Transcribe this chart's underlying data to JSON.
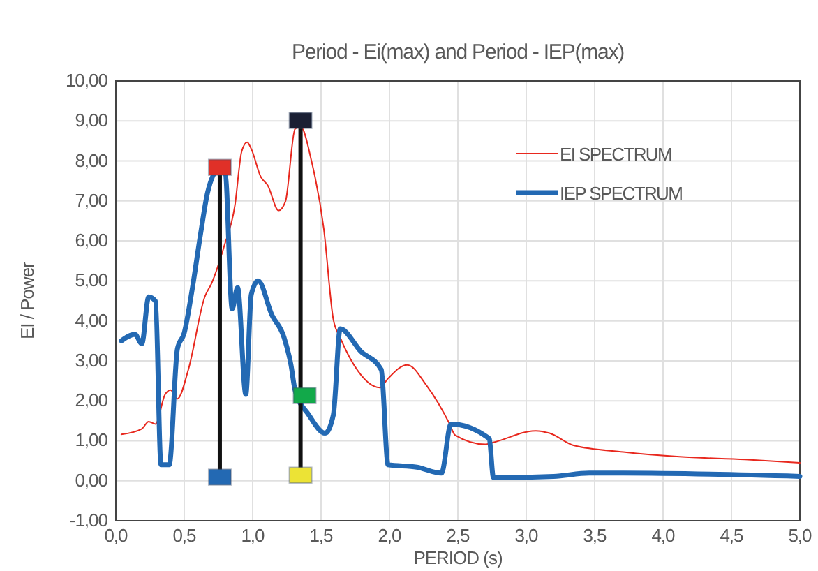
{
  "chart_data": {
    "type": "line",
    "title": "Period - Ei(max)  and Period - IEP(max)",
    "xlabel": "PERIOD (s)",
    "ylabel": "EI / Power",
    "xlim": [
      0,
      5
    ],
    "ylim": [
      -1,
      10
    ],
    "xticks": [
      {
        "value": 0,
        "label": "0,0"
      },
      {
        "value": 0.5,
        "label": "0,5"
      },
      {
        "value": 1,
        "label": "1,0"
      },
      {
        "value": 1.5,
        "label": "1,5"
      },
      {
        "value": 2,
        "label": "2,0"
      },
      {
        "value": 2.5,
        "label": "2,5"
      },
      {
        "value": 3,
        "label": "3,0"
      },
      {
        "value": 3.5,
        "label": "3,5"
      },
      {
        "value": 4,
        "label": "4,0"
      },
      {
        "value": 4.5,
        "label": "4,5"
      },
      {
        "value": 5,
        "label": "5,0"
      }
    ],
    "yticks": [
      {
        "value": -1,
        "label": "-1,00"
      },
      {
        "value": 0,
        "label": "0,00"
      },
      {
        "value": 1,
        "label": "1,00"
      },
      {
        "value": 2,
        "label": "2,00"
      },
      {
        "value": 3,
        "label": "3,00"
      },
      {
        "value": 4,
        "label": "4,00"
      },
      {
        "value": 5,
        "label": "5,00"
      },
      {
        "value": 6,
        "label": "6,00"
      },
      {
        "value": 7,
        "label": "7,00"
      },
      {
        "value": 8,
        "label": "8,00"
      },
      {
        "value": 9,
        "label": "9,00"
      },
      {
        "value": 10,
        "label": "10,00"
      }
    ],
    "grid": true,
    "legend": "top right",
    "line_style": "solid",
    "marker": "none",
    "series": [
      {
        "name": "EI SPECTRUM",
        "color": "#e8281e",
        "x": [
          0.04,
          0.19,
          0.24,
          0.29,
          0.36,
          0.4,
          0.45,
          0.53,
          0.65,
          0.7,
          0.79,
          0.87,
          0.92,
          0.96,
          0.99,
          1.06,
          1.11,
          1.19,
          1.24,
          1.31,
          1.35,
          1.43,
          1.52,
          1.59,
          1.64,
          1.74,
          1.93,
          1.99,
          2.13,
          2.27,
          2.44,
          2.48,
          2.7,
          2.77,
          3.07,
          3.17,
          3.35,
          3.71,
          4.12,
          4.6,
          5.0
        ],
        "values": [
          1.16,
          1.3,
          1.48,
          1.42,
          2.16,
          2.27,
          2.05,
          2.78,
          4.6,
          4.94,
          5.85,
          6.88,
          8.24,
          8.47,
          8.3,
          7.6,
          7.39,
          6.76,
          6.99,
          8.8,
          8.86,
          8.0,
          6.3,
          4.03,
          3.58,
          2.9,
          2.33,
          2.56,
          2.9,
          2.39,
          1.42,
          1.14,
          0.91,
          0.97,
          1.25,
          1.19,
          0.88,
          0.72,
          0.6,
          0.53,
          0.45
        ]
      },
      {
        "name": "IEP SPECTRUM",
        "color": "#2369b3",
        "x": [
          0.04,
          0.14,
          0.19,
          0.24,
          0.29,
          0.33,
          0.39,
          0.45,
          0.5,
          0.56,
          0.62,
          0.67,
          0.75,
          0.8,
          0.85,
          0.89,
          0.95,
          0.99,
          1.04,
          1.14,
          1.23,
          1.28,
          1.31,
          1.41,
          1.53,
          1.59,
          1.64,
          1.79,
          1.94,
          1.99,
          2.2,
          2.38,
          2.45,
          2.72,
          2.73,
          2.76,
          3.2,
          3.46,
          3.71,
          5.0
        ],
        "values": [
          3.5,
          3.66,
          3.43,
          4.6,
          4.49,
          0.4,
          0.4,
          3.3,
          3.7,
          4.83,
          6.19,
          7.2,
          7.78,
          7.67,
          4.3,
          4.83,
          2.16,
          4.66,
          5.0,
          4.15,
          3.58,
          2.9,
          2.27,
          1.65,
          1.19,
          1.65,
          3.8,
          3.24,
          2.78,
          0.4,
          0.34,
          0.19,
          1.42,
          1.08,
          1.05,
          0.08,
          0.11,
          0.19,
          0.19,
          0.11
        ]
      },
      {
        "type": "line",
        "color": "#111111",
        "x": [
          0.76,
          0.76
        ],
        "values": [
          0.09,
          7.84
        ]
      },
      {
        "type": "line",
        "color": "#111111",
        "x": [
          1.35,
          1.35
        ],
        "values": [
          0.14,
          9.01
        ]
      },
      {
        "type": "scatter",
        "marker": "square",
        "color": "#e03028",
        "x": [
          0.76
        ],
        "values": [
          7.84
        ]
      },
      {
        "type": "scatter",
        "marker": "square",
        "color": "#2369b3",
        "x": [
          0.76
        ],
        "values": [
          0.09
        ]
      },
      {
        "type": "scatter",
        "marker": "square",
        "color": "#1a1f33",
        "x": [
          1.35
        ],
        "values": [
          9.01
        ]
      },
      {
        "type": "scatter",
        "marker": "square",
        "color": "#12a94a",
        "x": [
          1.38
        ],
        "values": [
          2.13
        ]
      },
      {
        "type": "scatter",
        "marker": "square",
        "color": "#ece335",
        "x": [
          1.35
        ],
        "values": [
          0.14
        ]
      }
    ]
  }
}
